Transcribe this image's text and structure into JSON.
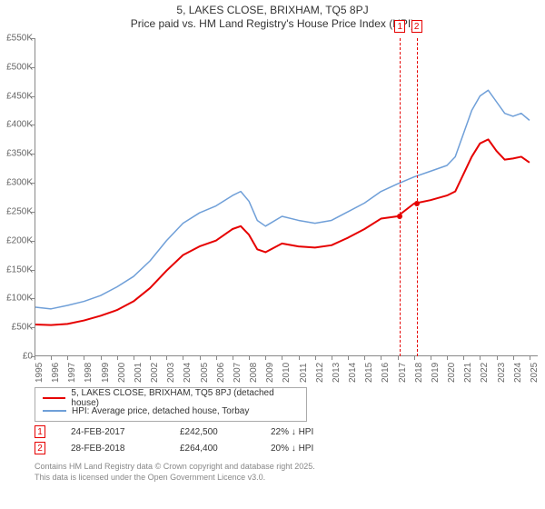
{
  "title": {
    "line1": "5, LAKES CLOSE, BRIXHAM, TQ5 8PJ",
    "line2": "Price paid vs. HM Land Registry's House Price Index (HPI)",
    "fontsize": 12,
    "color": "#333333"
  },
  "chart": {
    "type": "line",
    "background_color": "#ffffff",
    "axis_color": "#888888",
    "tick_label_color": "#666666",
    "tick_fontsize": 10,
    "xlim": [
      1995,
      2025.5
    ],
    "ylim": [
      0,
      550
    ],
    "yticks": [
      {
        "v": 0,
        "label": "£0"
      },
      {
        "v": 50,
        "label": "£50K"
      },
      {
        "v": 100,
        "label": "£100K"
      },
      {
        "v": 150,
        "label": "£150K"
      },
      {
        "v": 200,
        "label": "£200K"
      },
      {
        "v": 250,
        "label": "£250K"
      },
      {
        "v": 300,
        "label": "£300K"
      },
      {
        "v": 350,
        "label": "£350K"
      },
      {
        "v": 400,
        "label": "£400K"
      },
      {
        "v": 450,
        "label": "£450K"
      },
      {
        "v": 500,
        "label": "£500K"
      },
      {
        "v": 550,
        "label": "£550K"
      }
    ],
    "xticks": [
      1995,
      1996,
      1997,
      1998,
      1999,
      2000,
      2001,
      2002,
      2003,
      2004,
      2005,
      2006,
      2007,
      2008,
      2009,
      2010,
      2011,
      2012,
      2013,
      2014,
      2015,
      2016,
      2017,
      2018,
      2019,
      2020,
      2021,
      2022,
      2023,
      2024,
      2025
    ],
    "series": [
      {
        "name": "5, LAKES CLOSE, BRIXHAM, TQ5 8PJ (detached house)",
        "color": "#e60000",
        "line_width": 2,
        "points": [
          [
            1995,
            55
          ],
          [
            1996,
            54
          ],
          [
            1997,
            56
          ],
          [
            1998,
            62
          ],
          [
            1999,
            70
          ],
          [
            2000,
            80
          ],
          [
            2001,
            95
          ],
          [
            2002,
            118
          ],
          [
            2003,
            148
          ],
          [
            2004,
            175
          ],
          [
            2005,
            190
          ],
          [
            2006,
            200
          ],
          [
            2007,
            220
          ],
          [
            2007.5,
            225
          ],
          [
            2008,
            210
          ],
          [
            2008.5,
            185
          ],
          [
            2009,
            180
          ],
          [
            2010,
            195
          ],
          [
            2011,
            190
          ],
          [
            2012,
            188
          ],
          [
            2013,
            192
          ],
          [
            2014,
            205
          ],
          [
            2015,
            220
          ],
          [
            2016,
            238
          ],
          [
            2017,
            242
          ],
          [
            2018,
            264
          ],
          [
            2019,
            270
          ],
          [
            2020,
            278
          ],
          [
            2020.5,
            285
          ],
          [
            2021,
            315
          ],
          [
            2021.5,
            345
          ],
          [
            2022,
            368
          ],
          [
            2022.5,
            375
          ],
          [
            2023,
            355
          ],
          [
            2023.5,
            340
          ],
          [
            2024,
            342
          ],
          [
            2024.5,
            345
          ],
          [
            2025,
            335
          ]
        ]
      },
      {
        "name": "HPI: Average price, detached house, Torbay",
        "color": "#6f9fd8",
        "line_width": 1.5,
        "points": [
          [
            1995,
            85
          ],
          [
            1996,
            82
          ],
          [
            1997,
            88
          ],
          [
            1998,
            95
          ],
          [
            1999,
            105
          ],
          [
            2000,
            120
          ],
          [
            2001,
            138
          ],
          [
            2002,
            165
          ],
          [
            2003,
            200
          ],
          [
            2004,
            230
          ],
          [
            2005,
            248
          ],
          [
            2006,
            260
          ],
          [
            2007,
            278
          ],
          [
            2007.5,
            285
          ],
          [
            2008,
            268
          ],
          [
            2008.5,
            235
          ],
          [
            2009,
            225
          ],
          [
            2010,
            242
          ],
          [
            2011,
            235
          ],
          [
            2012,
            230
          ],
          [
            2013,
            235
          ],
          [
            2014,
            250
          ],
          [
            2015,
            265
          ],
          [
            2016,
            285
          ],
          [
            2017,
            298
          ],
          [
            2018,
            310
          ],
          [
            2019,
            320
          ],
          [
            2020,
            330
          ],
          [
            2020.5,
            345
          ],
          [
            2021,
            385
          ],
          [
            2021.5,
            425
          ],
          [
            2022,
            450
          ],
          [
            2022.5,
            460
          ],
          [
            2023,
            440
          ],
          [
            2023.5,
            420
          ],
          [
            2024,
            415
          ],
          [
            2024.5,
            420
          ],
          [
            2025,
            408
          ]
        ]
      }
    ],
    "markers": [
      {
        "id": "1",
        "x": 2017.15,
        "color": "#e60000",
        "dot_y": 242
      },
      {
        "id": "2",
        "x": 2018.16,
        "color": "#e60000",
        "dot_y": 264
      }
    ]
  },
  "legend": {
    "border_color": "#aaaaaa",
    "fontsize": 10,
    "items": [
      {
        "color": "#e60000",
        "width": 2,
        "label": "5, LAKES CLOSE, BRIXHAM, TQ5 8PJ (detached house)"
      },
      {
        "color": "#6f9fd8",
        "width": 1.5,
        "label": "HPI: Average price, detached house, Torbay"
      }
    ]
  },
  "sales": [
    {
      "badge": "1",
      "color": "#e60000",
      "date": "24-FEB-2017",
      "price": "£242,500",
      "pct": "22% ↓ HPI"
    },
    {
      "badge": "2",
      "color": "#e60000",
      "date": "28-FEB-2018",
      "price": "£264,400",
      "pct": "20% ↓ HPI"
    }
  ],
  "footer": {
    "line1": "Contains HM Land Registry data © Crown copyright and database right 2025.",
    "line2": "This data is licensed under the Open Government Licence v3.0.",
    "color": "#888888",
    "fontsize": 9
  }
}
